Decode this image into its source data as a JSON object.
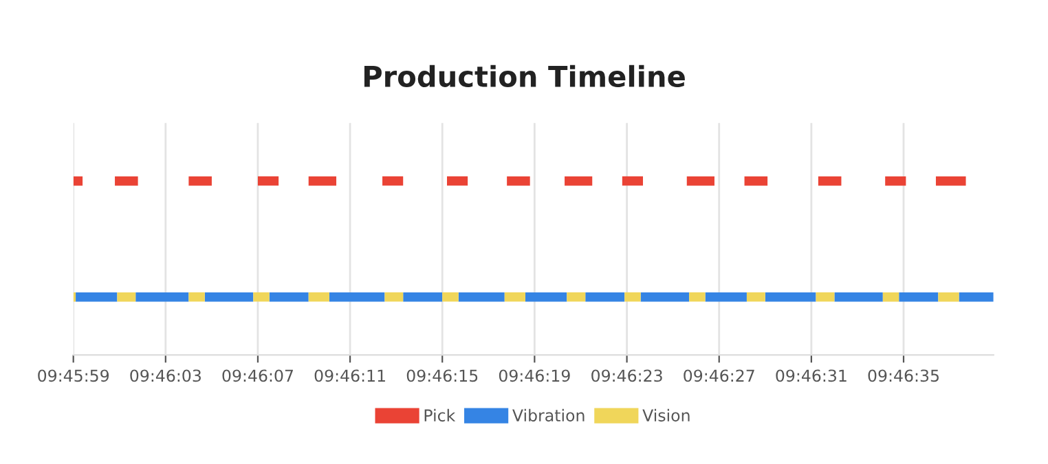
{
  "chart_data": {
    "type": "bar",
    "orientation": "horizontal",
    "title": "Production Timeline",
    "grid": "x",
    "legend": "bottom",
    "categories": [
      null,
      null
    ],
    "xlim": [
      9.766389,
      9.777472
    ],
    "xticks": [
      {
        "value": 9.766389,
        "label": "09:45:59"
      },
      {
        "value": 9.7675,
        "label": "09:46:03"
      },
      {
        "value": 9.768611,
        "label": "09:46:07"
      },
      {
        "value": 9.769722,
        "label": "09:46:11"
      },
      {
        "value": 9.770833,
        "label": "09:46:15"
      },
      {
        "value": 9.771944,
        "label": "09:46:19"
      },
      {
        "value": 9.773056,
        "label": "09:46:23"
      },
      {
        "value": 9.774167,
        "label": "09:46:27"
      },
      {
        "value": 9.775278,
        "label": "09:46:31"
      },
      {
        "value": 9.776389,
        "label": "09:46:35"
      }
    ],
    "series": [
      {
        "name": "Pick",
        "color": "#ea4335",
        "base": [
          9.766389,
          null
        ],
        "values": [
          0.000111,
          null
        ]
      },
      {
        "color": "#ea4335",
        "base": [
          9.766889,
          null
        ],
        "values": [
          0.000278,
          null
        ]
      },
      {
        "color": "#ea4335",
        "base": [
          9.767778,
          null
        ],
        "values": [
          0.000278,
          null
        ]
      },
      {
        "color": "#ea4335",
        "base": [
          9.768611,
          null
        ],
        "values": [
          0.00025,
          null
        ]
      },
      {
        "color": "#ea4335",
        "base": [
          9.769222,
          null
        ],
        "values": [
          0.000334,
          null
        ]
      },
      {
        "color": "#ea4335",
        "base": [
          9.770111,
          null
        ],
        "values": [
          0.00025,
          null
        ]
      },
      {
        "color": "#ea4335",
        "base": [
          9.770889,
          null
        ],
        "values": [
          0.00025,
          null
        ]
      },
      {
        "color": "#ea4335",
        "base": [
          9.771611,
          null
        ],
        "values": [
          0.000278,
          null
        ]
      },
      {
        "color": "#ea4335",
        "base": [
          9.772306,
          null
        ],
        "values": [
          0.000333,
          null
        ]
      },
      {
        "color": "#ea4335",
        "base": [
          9.773,
          null
        ],
        "values": [
          0.00025,
          null
        ]
      },
      {
        "color": "#ea4335",
        "base": [
          9.773778,
          null
        ],
        "values": [
          0.000333,
          null
        ]
      },
      {
        "color": "#ea4335",
        "base": [
          9.774472,
          null
        ],
        "values": [
          0.000278,
          null
        ]
      },
      {
        "color": "#ea4335",
        "base": [
          9.775361,
          null
        ],
        "values": [
          0.000278,
          null
        ]
      },
      {
        "color": "#ea4335",
        "base": [
          9.776167,
          null
        ],
        "values": [
          0.00025,
          null
        ]
      },
      {
        "color": "#ea4335",
        "base": [
          9.776778,
          null
        ],
        "values": [
          0.000361,
          null
        ]
      },
      {
        "name": "Vibration",
        "color": "#3584e4",
        "base": [
          null,
          9.766417
        ],
        "values": [
          null,
          0.0005
        ]
      },
      {
        "color": "#3584e4",
        "base": [
          null,
          9.767139
        ],
        "values": [
          null,
          0.000639
        ]
      },
      {
        "color": "#3584e4",
        "base": [
          null,
          9.767972
        ],
        "values": [
          null,
          0.000584
        ]
      },
      {
        "color": "#3584e4",
        "base": [
          null,
          9.76875
        ],
        "values": [
          null,
          0.000472
        ]
      },
      {
        "color": "#3584e4",
        "base": [
          null,
          9.769472
        ],
        "values": [
          null,
          0.000667
        ]
      },
      {
        "color": "#3584e4",
        "base": [
          null,
          9.770361
        ],
        "values": [
          null,
          0.000472
        ]
      },
      {
        "color": "#3584e4",
        "base": [
          null,
          9.771028
        ],
        "values": [
          null,
          0.000555
        ]
      },
      {
        "color": "#3584e4",
        "base": [
          null,
          9.771833
        ],
        "values": [
          null,
          0.0005
        ]
      },
      {
        "color": "#3584e4",
        "base": [
          null,
          9.772556
        ],
        "values": [
          null,
          0.000472
        ]
      },
      {
        "color": "#3584e4",
        "base": [
          null,
          9.773222
        ],
        "values": [
          null,
          0.000584
        ]
      },
      {
        "color": "#3584e4",
        "base": [
          null,
          9.774
        ],
        "values": [
          null,
          0.0005
        ]
      },
      {
        "color": "#3584e4",
        "base": [
          null,
          9.774722
        ],
        "values": [
          null,
          0.000611
        ]
      },
      {
        "color": "#3584e4",
        "base": [
          null,
          9.775556
        ],
        "values": [
          null,
          0.000583
        ]
      },
      {
        "color": "#3584e4",
        "base": [
          null,
          9.776333
        ],
        "values": [
          null,
          0.000473
        ]
      },
      {
        "color": "#3584e4",
        "base": [
          null,
          9.777056
        ],
        "values": [
          null,
          0.000416
        ]
      },
      {
        "name": "Vision",
        "color": "#f0d65a",
        "base": [
          null,
          9.766389
        ],
        "values": [
          null,
          2.8e-05
        ]
      },
      {
        "color": "#f0d65a",
        "base": [
          null,
          9.766917
        ],
        "values": [
          null,
          0.000222
        ]
      },
      {
        "color": "#f0d65a",
        "base": [
          null,
          9.767778
        ],
        "values": [
          null,
          0.000194
        ]
      },
      {
        "color": "#f0d65a",
        "base": [
          null,
          9.768556
        ],
        "values": [
          null,
          0.000194
        ]
      },
      {
        "color": "#f0d65a",
        "base": [
          null,
          9.769222
        ],
        "values": [
          null,
          0.00025
        ]
      },
      {
        "color": "#f0d65a",
        "base": [
          null,
          9.770139
        ],
        "values": [
          null,
          0.000222
        ]
      },
      {
        "color": "#f0d65a",
        "base": [
          null,
          9.770833
        ],
        "values": [
          null,
          0.000195
        ]
      },
      {
        "color": "#f0d65a",
        "base": [
          null,
          9.771583
        ],
        "values": [
          null,
          0.00025
        ]
      },
      {
        "color": "#f0d65a",
        "base": [
          null,
          9.772333
        ],
        "values": [
          null,
          0.000223
        ]
      },
      {
        "color": "#f0d65a",
        "base": [
          null,
          9.773028
        ],
        "values": [
          null,
          0.000194
        ]
      },
      {
        "color": "#f0d65a",
        "base": [
          null,
          9.773806
        ],
        "values": [
          null,
          0.000194
        ]
      },
      {
        "color": "#f0d65a",
        "base": [
          null,
          9.7745
        ],
        "values": [
          null,
          0.000222
        ]
      },
      {
        "color": "#f0d65a",
        "base": [
          null,
          9.775333
        ],
        "values": [
          null,
          0.000223
        ]
      },
      {
        "color": "#f0d65a",
        "base": [
          null,
          9.776139
        ],
        "values": [
          null,
          0.000194
        ]
      },
      {
        "color": "#f0d65a",
        "base": [
          null,
          9.776806
        ],
        "values": [
          null,
          0.00025
        ]
      }
    ]
  }
}
